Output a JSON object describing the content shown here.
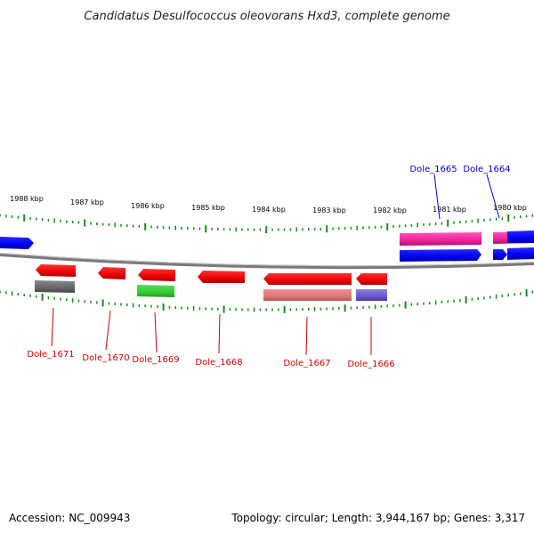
{
  "title": "Candidatus Desulfococcus oleovorans Hxd3, complete genome",
  "accession_text": "Accession: NC_009943",
  "summary_text": "Topology: circular; Length: 3,944,167 bp; Genes: 3,317",
  "colors": {
    "backbone": "#7a7a7a",
    "tick": "#1a8a1a",
    "forward_label": "#0000cc",
    "reverse_label": "#cc0000"
  },
  "scale_labels": [
    "1988 kbp",
    "1987 kbp",
    "1986 kbp",
    "1985 kbp",
    "1984 kbp",
    "1983 kbp",
    "1982 kbp",
    "1981 kbp",
    "1980 kbp"
  ],
  "gene_labels": [
    {
      "name": "Dole_1665",
      "strand": "forward"
    },
    {
      "name": "Dole_1664",
      "strand": "forward"
    },
    {
      "name": "Dole_1671",
      "strand": "reverse"
    },
    {
      "name": "Dole_1670",
      "strand": "reverse"
    },
    {
      "name": "Dole_1669",
      "strand": "reverse"
    },
    {
      "name": "Dole_1668",
      "strand": "reverse"
    },
    {
      "name": "Dole_1667",
      "strand": "reverse"
    },
    {
      "name": "Dole_1666",
      "strand": "reverse"
    }
  ]
}
